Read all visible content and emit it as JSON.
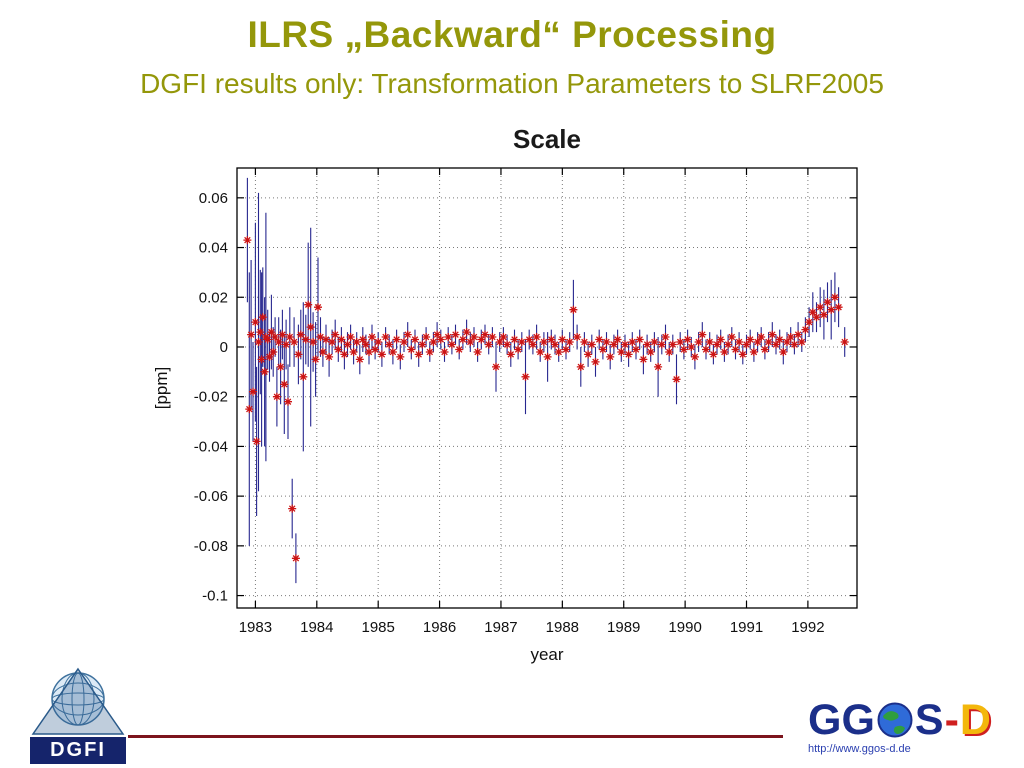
{
  "slide": {
    "title": "ILRS „Backward“ Processing",
    "subtitle": "DGFI results only: Transformation Parameters to SLRF2005",
    "title_color": "#94970a"
  },
  "chart_data": {
    "type": "scatter",
    "title": "Scale",
    "xlabel": "year",
    "ylabel": "[ppm]",
    "xlim": [
      1982.7,
      1992.8
    ],
    "ylim": [
      -0.105,
      0.072
    ],
    "x_ticks": [
      1983,
      1984,
      1985,
      1986,
      1987,
      1988,
      1989,
      1990,
      1991,
      1992
    ],
    "x_tick_labels": [
      "1983",
      "1984",
      "1985",
      "1986",
      "1987",
      "1988",
      "1989",
      "1990",
      "1991",
      "1992"
    ],
    "y_ticks": [
      0.06,
      0.04,
      0.02,
      0,
      -0.02,
      -0.04,
      -0.06,
      -0.08,
      -0.1
    ],
    "y_tick_labels": [
      "0.06",
      "0.04",
      "0.02",
      "0",
      "-0.02",
      "-0.04",
      "-0.06",
      "-0.08",
      "-0.1"
    ],
    "grid": "dotted",
    "legend": "none",
    "marker": "red-asterisk-with-navy-errorbars",
    "marker_color": "#cc1414",
    "errorbar_color": "#27278f",
    "points": [
      [
        1982.87,
        0.043,
        0.025
      ],
      [
        1982.9,
        -0.025,
        0.055
      ],
      [
        1982.93,
        0.005,
        0.03
      ],
      [
        1982.96,
        -0.018,
        0.02
      ],
      [
        1983.0,
        0.01,
        0.04
      ],
      [
        1983.02,
        -0.038,
        0.03
      ],
      [
        1983.05,
        0.002,
        0.06
      ],
      [
        1983.08,
        0.006,
        0.025
      ],
      [
        1983.1,
        -0.005,
        0.035
      ],
      [
        1983.12,
        0.012,
        0.02
      ],
      [
        1983.15,
        -0.01,
        0.03
      ],
      [
        1983.17,
        0.004,
        0.05
      ],
      [
        1983.2,
        0.003,
        0.012
      ],
      [
        1983.23,
        -0.004,
        0.01
      ],
      [
        1983.26,
        0.006,
        0.015
      ],
      [
        1983.29,
        -0.002,
        0.01
      ],
      [
        1983.32,
        0.004,
        0.008
      ],
      [
        1983.35,
        -0.02,
        0.012
      ],
      [
        1983.38,
        0.002,
        0.01
      ],
      [
        1983.41,
        -0.008,
        0.015
      ],
      [
        1983.44,
        0.005,
        0.01
      ],
      [
        1983.47,
        -0.015,
        0.02
      ],
      [
        1983.5,
        0.001,
        0.01
      ],
      [
        1983.53,
        -0.022,
        0.015
      ],
      [
        1983.56,
        0.004,
        0.012
      ],
      [
        1983.6,
        -0.065,
        0.012
      ],
      [
        1983.63,
        0.002,
        0.01
      ],
      [
        1983.66,
        -0.085,
        0.01
      ],
      [
        1983.7,
        -0.003,
        0.012
      ],
      [
        1983.74,
        0.005,
        0.01
      ],
      [
        1983.78,
        -0.012,
        0.03
      ],
      [
        1983.82,
        0.003,
        0.01
      ],
      [
        1983.86,
        0.017,
        0.025
      ],
      [
        1983.9,
        0.008,
        0.04
      ],
      [
        1983.94,
        0.002,
        0.012
      ],
      [
        1983.98,
        -0.005,
        0.015
      ],
      [
        1984.02,
        0.016,
        0.02
      ],
      [
        1984.06,
        0.004,
        0.008
      ],
      [
        1984.1,
        -0.002,
        0.006
      ],
      [
        1984.15,
        0.003,
        0.006
      ],
      [
        1984.2,
        -0.004,
        0.008
      ],
      [
        1984.25,
        0.002,
        0.005
      ],
      [
        1984.3,
        0.005,
        0.006
      ],
      [
        1984.35,
        -0.001,
        0.005
      ],
      [
        1984.4,
        0.003,
        0.005
      ],
      [
        1984.45,
        -0.003,
        0.006
      ],
      [
        1984.5,
        0.001,
        0.005
      ],
      [
        1984.55,
        0.004,
        0.005
      ],
      [
        1984.6,
        -0.002,
        0.005
      ],
      [
        1984.65,
        0.002,
        0.004
      ],
      [
        1984.7,
        -0.005,
        0.006
      ],
      [
        1984.75,
        0.003,
        0.005
      ],
      [
        1984.8,
        0.001,
        0.004
      ],
      [
        1984.85,
        -0.002,
        0.005
      ],
      [
        1984.9,
        0.004,
        0.005
      ],
      [
        1984.95,
        -0.001,
        0.004
      ],
      [
        1985.0,
        0.002,
        0.004
      ],
      [
        1985.06,
        -0.003,
        0.005
      ],
      [
        1985.12,
        0.004,
        0.004
      ],
      [
        1985.18,
        0.001,
        0.004
      ],
      [
        1985.24,
        -0.002,
        0.005
      ],
      [
        1985.3,
        0.003,
        0.004
      ],
      [
        1985.36,
        -0.004,
        0.005
      ],
      [
        1985.42,
        0.002,
        0.004
      ],
      [
        1985.48,
        0.005,
        0.005
      ],
      [
        1985.54,
        -0.001,
        0.004
      ],
      [
        1985.6,
        0.003,
        0.004
      ],
      [
        1985.66,
        -0.003,
        0.005
      ],
      [
        1985.72,
        0.001,
        0.004
      ],
      [
        1985.78,
        0.004,
        0.004
      ],
      [
        1985.84,
        -0.002,
        0.004
      ],
      [
        1985.9,
        0.002,
        0.004
      ],
      [
        1985.96,
        0.005,
        0.005
      ],
      [
        1986.02,
        0.003,
        0.004
      ],
      [
        1986.08,
        -0.002,
        0.004
      ],
      [
        1986.14,
        0.004,
        0.004
      ],
      [
        1986.2,
        0.001,
        0.004
      ],
      [
        1986.26,
        0.005,
        0.004
      ],
      [
        1986.32,
        -0.001,
        0.004
      ],
      [
        1986.38,
        0.003,
        0.004
      ],
      [
        1986.44,
        0.006,
        0.005
      ],
      [
        1986.5,
        0.002,
        0.004
      ],
      [
        1986.56,
        0.004,
        0.004
      ],
      [
        1986.62,
        -0.002,
        0.004
      ],
      [
        1986.68,
        0.003,
        0.004
      ],
      [
        1986.74,
        0.005,
        0.004
      ],
      [
        1986.8,
        0.001,
        0.004
      ],
      [
        1986.86,
        0.004,
        0.004
      ],
      [
        1986.92,
        -0.008,
        0.01
      ],
      [
        1986.98,
        0.002,
        0.004
      ],
      [
        1987.04,
        0.004,
        0.004
      ],
      [
        1987.1,
        0.001,
        0.004
      ],
      [
        1987.16,
        -0.003,
        0.005
      ],
      [
        1987.22,
        0.003,
        0.004
      ],
      [
        1987.28,
        -0.001,
        0.004
      ],
      [
        1987.34,
        0.002,
        0.004
      ],
      [
        1987.4,
        -0.012,
        0.015
      ],
      [
        1987.46,
        0.003,
        0.004
      ],
      [
        1987.52,
        0.001,
        0.004
      ],
      [
        1987.58,
        0.004,
        0.005
      ],
      [
        1987.64,
        -0.002,
        0.004
      ],
      [
        1987.7,
        0.002,
        0.004
      ],
      [
        1987.76,
        -0.004,
        0.01
      ],
      [
        1987.82,
        0.003,
        0.004
      ],
      [
        1987.88,
        0.001,
        0.004
      ],
      [
        1987.94,
        -0.002,
        0.004
      ],
      [
        1988.0,
        0.003,
        0.004
      ],
      [
        1988.06,
        -0.001,
        0.004
      ],
      [
        1988.12,
        0.002,
        0.004
      ],
      [
        1988.18,
        0.015,
        0.012
      ],
      [
        1988.24,
        0.004,
        0.005
      ],
      [
        1988.3,
        -0.008,
        0.008
      ],
      [
        1988.36,
        0.002,
        0.004
      ],
      [
        1988.42,
        -0.003,
        0.005
      ],
      [
        1988.48,
        0.001,
        0.004
      ],
      [
        1988.54,
        -0.006,
        0.006
      ],
      [
        1988.6,
        0.003,
        0.004
      ],
      [
        1988.66,
        -0.001,
        0.004
      ],
      [
        1988.72,
        0.002,
        0.004
      ],
      [
        1988.78,
        -0.004,
        0.005
      ],
      [
        1988.84,
        0.001,
        0.004
      ],
      [
        1988.9,
        0.003,
        0.004
      ],
      [
        1988.96,
        -0.002,
        0.004
      ],
      [
        1989.02,
        0.001,
        0.004
      ],
      [
        1989.08,
        -0.003,
        0.005
      ],
      [
        1989.14,
        0.002,
        0.004
      ],
      [
        1989.2,
        -0.001,
        0.004
      ],
      [
        1989.26,
        0.003,
        0.004
      ],
      [
        1989.32,
        -0.005,
        0.006
      ],
      [
        1989.38,
        0.001,
        0.004
      ],
      [
        1989.44,
        -0.002,
        0.004
      ],
      [
        1989.5,
        0.002,
        0.004
      ],
      [
        1989.56,
        -0.008,
        0.012
      ],
      [
        1989.62,
        0.001,
        0.004
      ],
      [
        1989.68,
        0.004,
        0.005
      ],
      [
        1989.74,
        -0.002,
        0.004
      ],
      [
        1989.8,
        0.001,
        0.004
      ],
      [
        1989.86,
        -0.013,
        0.01
      ],
      [
        1989.92,
        0.002,
        0.004
      ],
      [
        1989.98,
        -0.001,
        0.004
      ],
      [
        1990.04,
        0.003,
        0.004
      ],
      [
        1990.1,
        0.0,
        0.004
      ],
      [
        1990.16,
        -0.004,
        0.005
      ],
      [
        1990.22,
        0.002,
        0.004
      ],
      [
        1990.28,
        0.005,
        0.005
      ],
      [
        1990.34,
        -0.001,
        0.004
      ],
      [
        1990.4,
        0.002,
        0.004
      ],
      [
        1990.46,
        -0.003,
        0.004
      ],
      [
        1990.52,
        0.001,
        0.004
      ],
      [
        1990.58,
        0.003,
        0.004
      ],
      [
        1990.64,
        -0.002,
        0.004
      ],
      [
        1990.7,
        0.001,
        0.004
      ],
      [
        1990.76,
        0.004,
        0.004
      ],
      [
        1990.82,
        -0.001,
        0.004
      ],
      [
        1990.88,
        0.002,
        0.004
      ],
      [
        1990.94,
        -0.003,
        0.004
      ],
      [
        1991.0,
        0.001,
        0.004
      ],
      [
        1991.06,
        0.003,
        0.004
      ],
      [
        1991.12,
        -0.002,
        0.004
      ],
      [
        1991.18,
        0.002,
        0.004
      ],
      [
        1991.24,
        0.004,
        0.004
      ],
      [
        1991.3,
        -0.001,
        0.004
      ],
      [
        1991.36,
        0.002,
        0.004
      ],
      [
        1991.42,
        0.005,
        0.005
      ],
      [
        1991.48,
        0.001,
        0.004
      ],
      [
        1991.54,
        0.003,
        0.004
      ],
      [
        1991.6,
        -0.002,
        0.005
      ],
      [
        1991.66,
        0.002,
        0.004
      ],
      [
        1991.72,
        0.004,
        0.004
      ],
      [
        1991.78,
        0.001,
        0.004
      ],
      [
        1991.84,
        0.005,
        0.005
      ],
      [
        1991.9,
        0.002,
        0.004
      ],
      [
        1991.96,
        0.007,
        0.005
      ],
      [
        1992.02,
        0.01,
        0.006
      ],
      [
        1992.08,
        0.014,
        0.008
      ],
      [
        1992.14,
        0.012,
        0.006
      ],
      [
        1992.2,
        0.016,
        0.008
      ],
      [
        1992.26,
        0.013,
        0.01
      ],
      [
        1992.32,
        0.018,
        0.008
      ],
      [
        1992.38,
        0.015,
        0.012
      ],
      [
        1992.44,
        0.02,
        0.01
      ],
      [
        1992.5,
        0.016,
        0.008
      ],
      [
        1992.6,
        0.002,
        0.006
      ]
    ]
  },
  "footer": {
    "dgfi_label": "DGFI",
    "ggos_gg": "GG",
    "ggos_s": "S",
    "ggos_dash": "-",
    "ggos_d": "D",
    "ggos_url": "http://www.ggos-d.de",
    "line_color": "#7c141d"
  }
}
